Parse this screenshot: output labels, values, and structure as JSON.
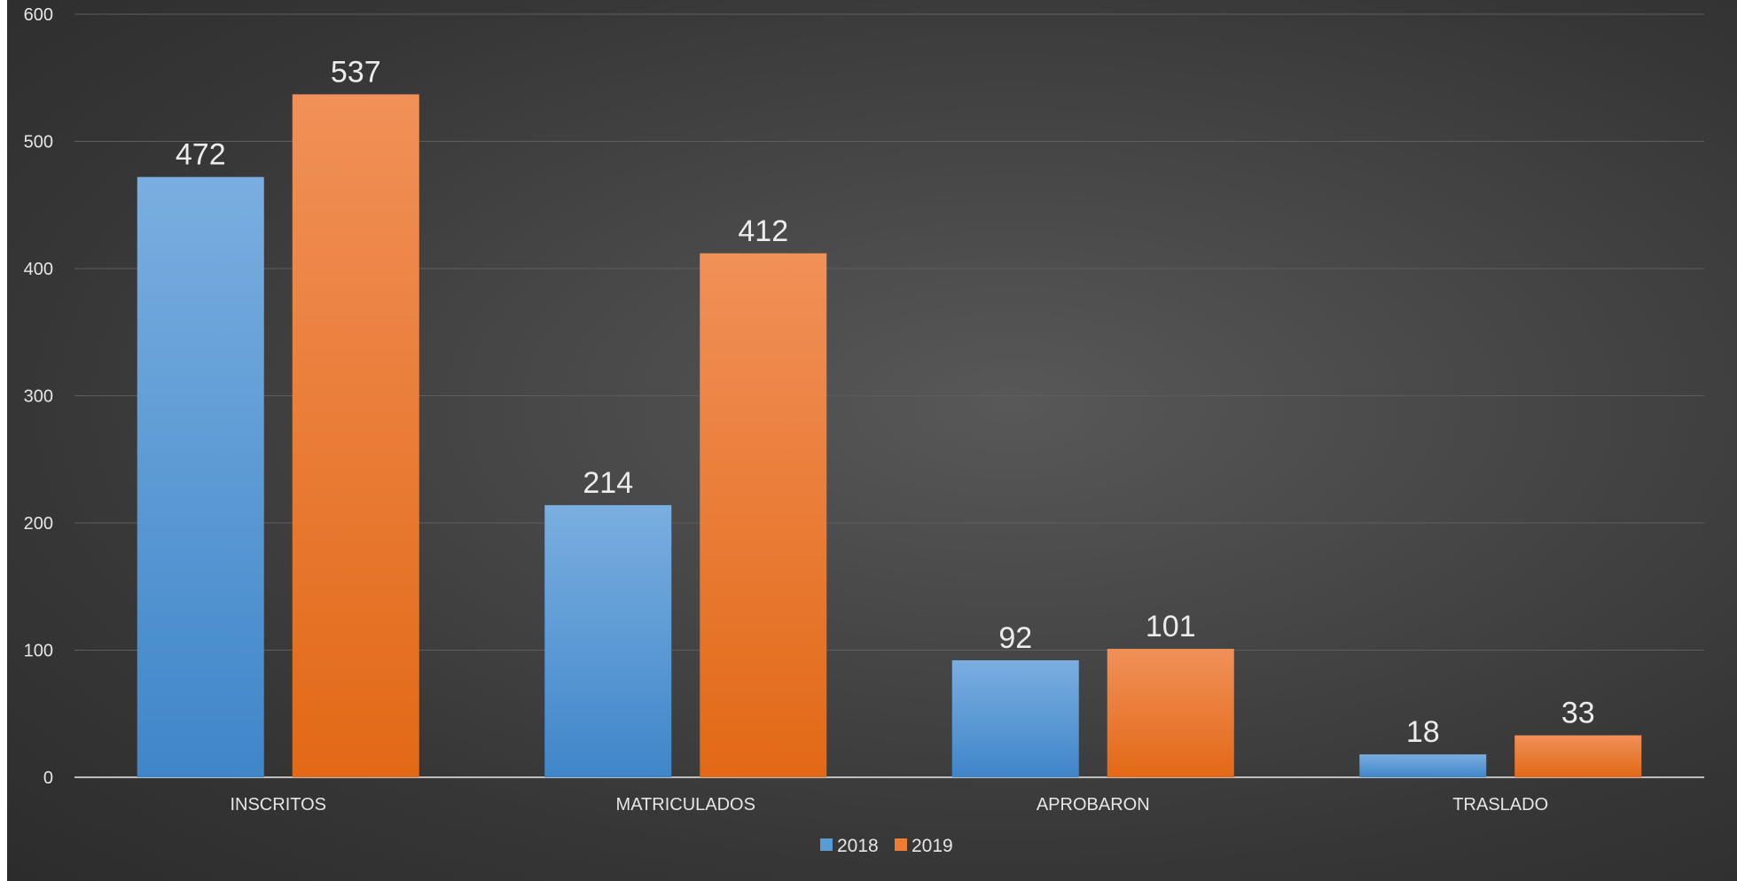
{
  "chart_data": {
    "type": "bar",
    "title": "",
    "xlabel": "",
    "ylabel": "",
    "categories": [
      "INSCRITOS",
      "MATRICULADOS",
      "APROBARON",
      "TRASLADO"
    ],
    "series": [
      {
        "name": "2018",
        "values": [
          472,
          214,
          92,
          18
        ],
        "color": "#5b9bd5"
      },
      {
        "name": "2019",
        "values": [
          537,
          412,
          101,
          33
        ],
        "color": "#ed7d31"
      }
    ],
    "ylim": [
      0,
      600
    ],
    "yticks": [
      0,
      100,
      200,
      300,
      400,
      500,
      600
    ],
    "grid": true,
    "legend": "bottom-center",
    "data_labels": true
  }
}
